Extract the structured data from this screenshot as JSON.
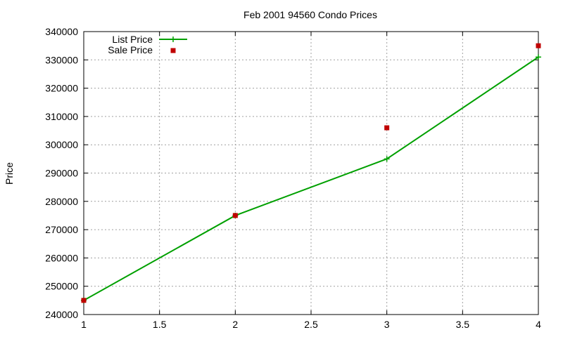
{
  "chart_data": {
    "type": "line",
    "title": "Feb 2001 94560 Condo Prices",
    "xlabel": "",
    "ylabel": "Price",
    "xlim": [
      1,
      4
    ],
    "ylim": [
      240000,
      340000
    ],
    "x_ticks": [
      "1",
      "1.5",
      "2",
      "2.5",
      "3",
      "3.5",
      "4"
    ],
    "y_ticks": [
      "240000",
      "250000",
      "260000",
      "270000",
      "280000",
      "290000",
      "300000",
      "310000",
      "320000",
      "330000",
      "340000"
    ],
    "grid": true,
    "legend_position": "top-left",
    "series": [
      {
        "name": "List Price",
        "style": "linespoints",
        "marker": "plus",
        "color": "#00a000",
        "x": [
          1,
          2,
          3,
          4
        ],
        "y": [
          245000,
          275000,
          295000,
          331000
        ]
      },
      {
        "name": "Sale Price",
        "style": "points",
        "marker": "square",
        "color": "#c00000",
        "x": [
          1,
          2,
          3,
          4
        ],
        "y": [
          245000,
          275000,
          306000,
          335000
        ]
      }
    ]
  }
}
